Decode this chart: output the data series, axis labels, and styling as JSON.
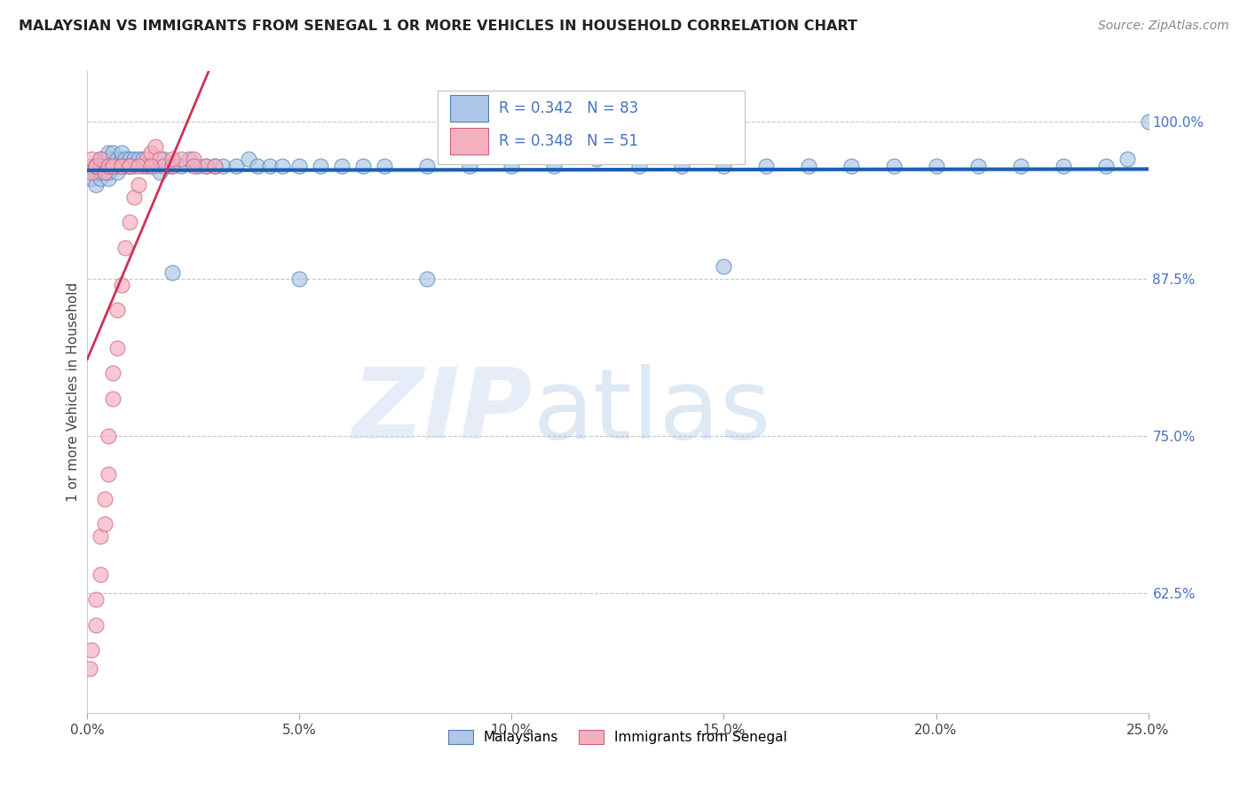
{
  "title": "MALAYSIAN VS IMMIGRANTS FROM SENEGAL 1 OR MORE VEHICLES IN HOUSEHOLD CORRELATION CHART",
  "source": "Source: ZipAtlas.com",
  "ylabel": "1 or more Vehicles in Household",
  "ytick_labels": [
    "100.0%",
    "87.5%",
    "75.0%",
    "62.5%"
  ],
  "ytick_values": [
    1.0,
    0.875,
    0.75,
    0.625
  ],
  "xmin": 0.0,
  "xmax": 0.25,
  "ymin": 0.53,
  "ymax": 1.04,
  "R_malaysian": 0.342,
  "N_malaysian": 83,
  "R_senegal": 0.348,
  "N_senegal": 51,
  "line_color_malaysian": "#1a5fb4",
  "line_color_senegal": "#cc3355",
  "scatter_color_malaysian": "#aec6e8",
  "scatter_color_senegal": "#f5b0c0",
  "scatter_edge_malaysian": "#5080b0",
  "scatter_edge_senegal": "#cc6080",
  "legend_label_malaysian": "Malaysians",
  "legend_label_senegal": "Immigrants from Senegal",
  "legend_R_color": "#4472c4",
  "legend_N_color": "#cc3355"
}
